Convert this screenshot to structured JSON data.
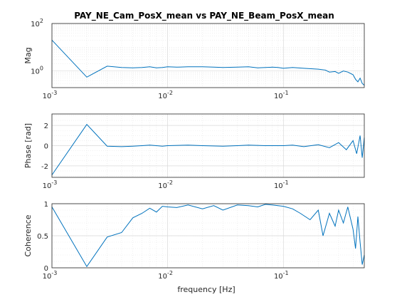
{
  "figure": {
    "title": "PAY_NE_Cam_PosX_mean vs PAY_NE_Beam_PosX_mean",
    "xlabel": "frequency [Hz]"
  },
  "colors": {
    "series": "#0072bd",
    "grid_major": "#d9d9d9",
    "grid_minor": "#e6e6e6",
    "axes": "#262626",
    "background": "#ffffff"
  },
  "chart_data": [
    {
      "type": "line",
      "panel": "magnitude",
      "title": "PAY_NE_Cam_PosX_mean vs PAY_NE_Beam_PosX_mean",
      "xlabel": "",
      "ylabel": "Mag",
      "xscale": "log",
      "yscale": "log",
      "xlim": [
        0.001,
        0.5
      ],
      "ylim": [
        0.2,
        100
      ],
      "grid": "major+minor",
      "xticks": [
        0.001,
        0.01,
        0.1
      ],
      "xtick_labels": [
        [
          "10",
          "-3"
        ],
        [
          "10",
          "-2"
        ],
        [
          "10",
          "-1"
        ]
      ],
      "yticks": [
        1,
        100
      ],
      "ytick_labels": [
        [
          "10",
          "0"
        ],
        [
          "10",
          "2"
        ]
      ],
      "series": [
        {
          "x": [
            0.001,
            0.002,
            0.003,
            0.004,
            0.005,
            0.006,
            0.007,
            0.008,
            0.009,
            0.01,
            0.012,
            0.015,
            0.02,
            0.025,
            0.03,
            0.04,
            0.05,
            0.06,
            0.07,
            0.08,
            0.09,
            0.1,
            0.12,
            0.15,
            0.2,
            0.23,
            0.25,
            0.28,
            0.3,
            0.33,
            0.36,
            0.4,
            0.42,
            0.44,
            0.46,
            0.48,
            0.5
          ],
          "y": [
            20,
            0.55,
            1.6,
            1.4,
            1.35,
            1.4,
            1.5,
            1.35,
            1.4,
            1.5,
            1.45,
            1.5,
            1.5,
            1.45,
            1.4,
            1.45,
            1.5,
            1.35,
            1.4,
            1.45,
            1.4,
            1.3,
            1.4,
            1.3,
            1.2,
            1.1,
            0.9,
            0.95,
            0.8,
            1.0,
            0.9,
            0.7,
            0.45,
            0.35,
            0.5,
            0.3,
            0.25
          ]
        }
      ]
    },
    {
      "type": "line",
      "panel": "phase",
      "xlabel": "",
      "ylabel": "Phase [rad]",
      "xscale": "log",
      "yscale": "linear",
      "xlim": [
        0.001,
        0.5
      ],
      "ylim": [
        -3.14,
        3.14
      ],
      "grid": "major+minor",
      "xticks": [
        0.001,
        0.01,
        0.1
      ],
      "xtick_labels": [
        [
          "10",
          "-3"
        ],
        [
          "10",
          "-2"
        ],
        [
          "10",
          "-1"
        ]
      ],
      "yticks": [
        -2,
        0,
        2
      ],
      "ytick_labels": [
        "-2",
        "0",
        "2"
      ],
      "series": [
        {
          "x": [
            0.001,
            0.002,
            0.003,
            0.004,
            0.005,
            0.006,
            0.007,
            0.008,
            0.009,
            0.01,
            0.015,
            0.02,
            0.03,
            0.04,
            0.05,
            0.07,
            0.1,
            0.12,
            0.15,
            0.2,
            0.25,
            0.3,
            0.35,
            0.4,
            0.43,
            0.46,
            0.48,
            0.5
          ],
          "y": [
            -2.9,
            2.1,
            -0.05,
            -0.1,
            -0.05,
            0.0,
            0.05,
            0.0,
            -0.05,
            0.0,
            0.05,
            0.0,
            -0.05,
            0.0,
            0.05,
            0.0,
            0.0,
            0.05,
            -0.1,
            0.1,
            -0.2,
            0.3,
            -0.4,
            0.5,
            -0.8,
            1.0,
            -1.2,
            0.8
          ]
        }
      ]
    },
    {
      "type": "line",
      "panel": "coherence",
      "xlabel": "frequency [Hz]",
      "ylabel": "Coherence",
      "xscale": "log",
      "yscale": "linear",
      "xlim": [
        0.001,
        0.5
      ],
      "ylim": [
        0,
        1
      ],
      "grid": "major+minor",
      "xticks": [
        0.001,
        0.01,
        0.1
      ],
      "xtick_labels": [
        [
          "10",
          "-3"
        ],
        [
          "10",
          "-2"
        ],
        [
          "10",
          "-1"
        ]
      ],
      "yticks": [
        0,
        0.5,
        1
      ],
      "ytick_labels": [
        "0",
        "0.5",
        "1"
      ],
      "series": [
        {
          "x": [
            0.001,
            0.002,
            0.003,
            0.004,
            0.005,
            0.006,
            0.007,
            0.008,
            0.009,
            0.01,
            0.012,
            0.015,
            0.02,
            0.025,
            0.03,
            0.04,
            0.05,
            0.06,
            0.07,
            0.08,
            0.1,
            0.12,
            0.14,
            0.17,
            0.2,
            0.22,
            0.25,
            0.28,
            0.3,
            0.33,
            0.36,
            0.4,
            0.42,
            0.44,
            0.46,
            0.48,
            0.5
          ],
          "y": [
            0.95,
            0.02,
            0.48,
            0.55,
            0.78,
            0.85,
            0.93,
            0.87,
            0.96,
            0.95,
            0.94,
            0.98,
            0.92,
            0.97,
            0.9,
            0.98,
            0.97,
            0.95,
            0.99,
            0.98,
            0.96,
            0.92,
            0.85,
            0.75,
            0.9,
            0.5,
            0.85,
            0.65,
            0.9,
            0.7,
            0.95,
            0.6,
            0.3,
            0.8,
            0.4,
            0.05,
            0.2
          ]
        }
      ]
    }
  ]
}
